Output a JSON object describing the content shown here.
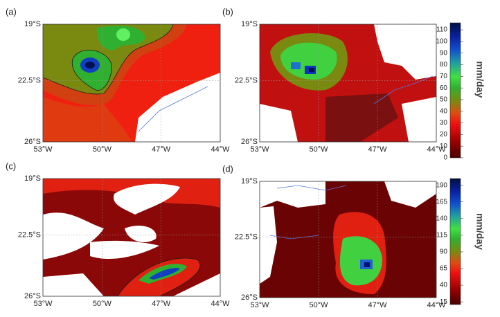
{
  "panels": [
    {
      "label": "(a)",
      "yticks": [
        "19°S",
        "22.5°S",
        "26°S"
      ],
      "xticks": [
        "53°W",
        "50°W",
        "47°W",
        "44°W"
      ]
    },
    {
      "label": "(b)",
      "yticks": [
        "19°S",
        "22.5°S",
        "26°S"
      ],
      "xticks": [
        "53°W",
        "50°W",
        "47°W",
        "44°W"
      ]
    },
    {
      "label": "(c)",
      "yticks": [
        "19°S",
        "22.5°S",
        "26°S"
      ],
      "xticks": [
        "53°W",
        "50°W",
        "47°W",
        "44°W"
      ]
    },
    {
      "label": "(d)",
      "yticks": [
        "19°S",
        "22.5°S",
        "26°S"
      ],
      "xticks": [
        "53°W",
        "50°W",
        "47°W",
        "44°W"
      ]
    }
  ],
  "colorbars": [
    {
      "unit": "mm/day",
      "clim": [
        0,
        116
      ],
      "ticks": [
        110,
        100,
        90,
        80,
        70,
        60,
        50,
        40,
        30,
        20,
        10,
        0
      ]
    },
    {
      "unit": "mm/day",
      "clim": [
        11,
        200
      ],
      "ticks": [
        190,
        165,
        140,
        115,
        90,
        65,
        40,
        15
      ]
    }
  ]
}
